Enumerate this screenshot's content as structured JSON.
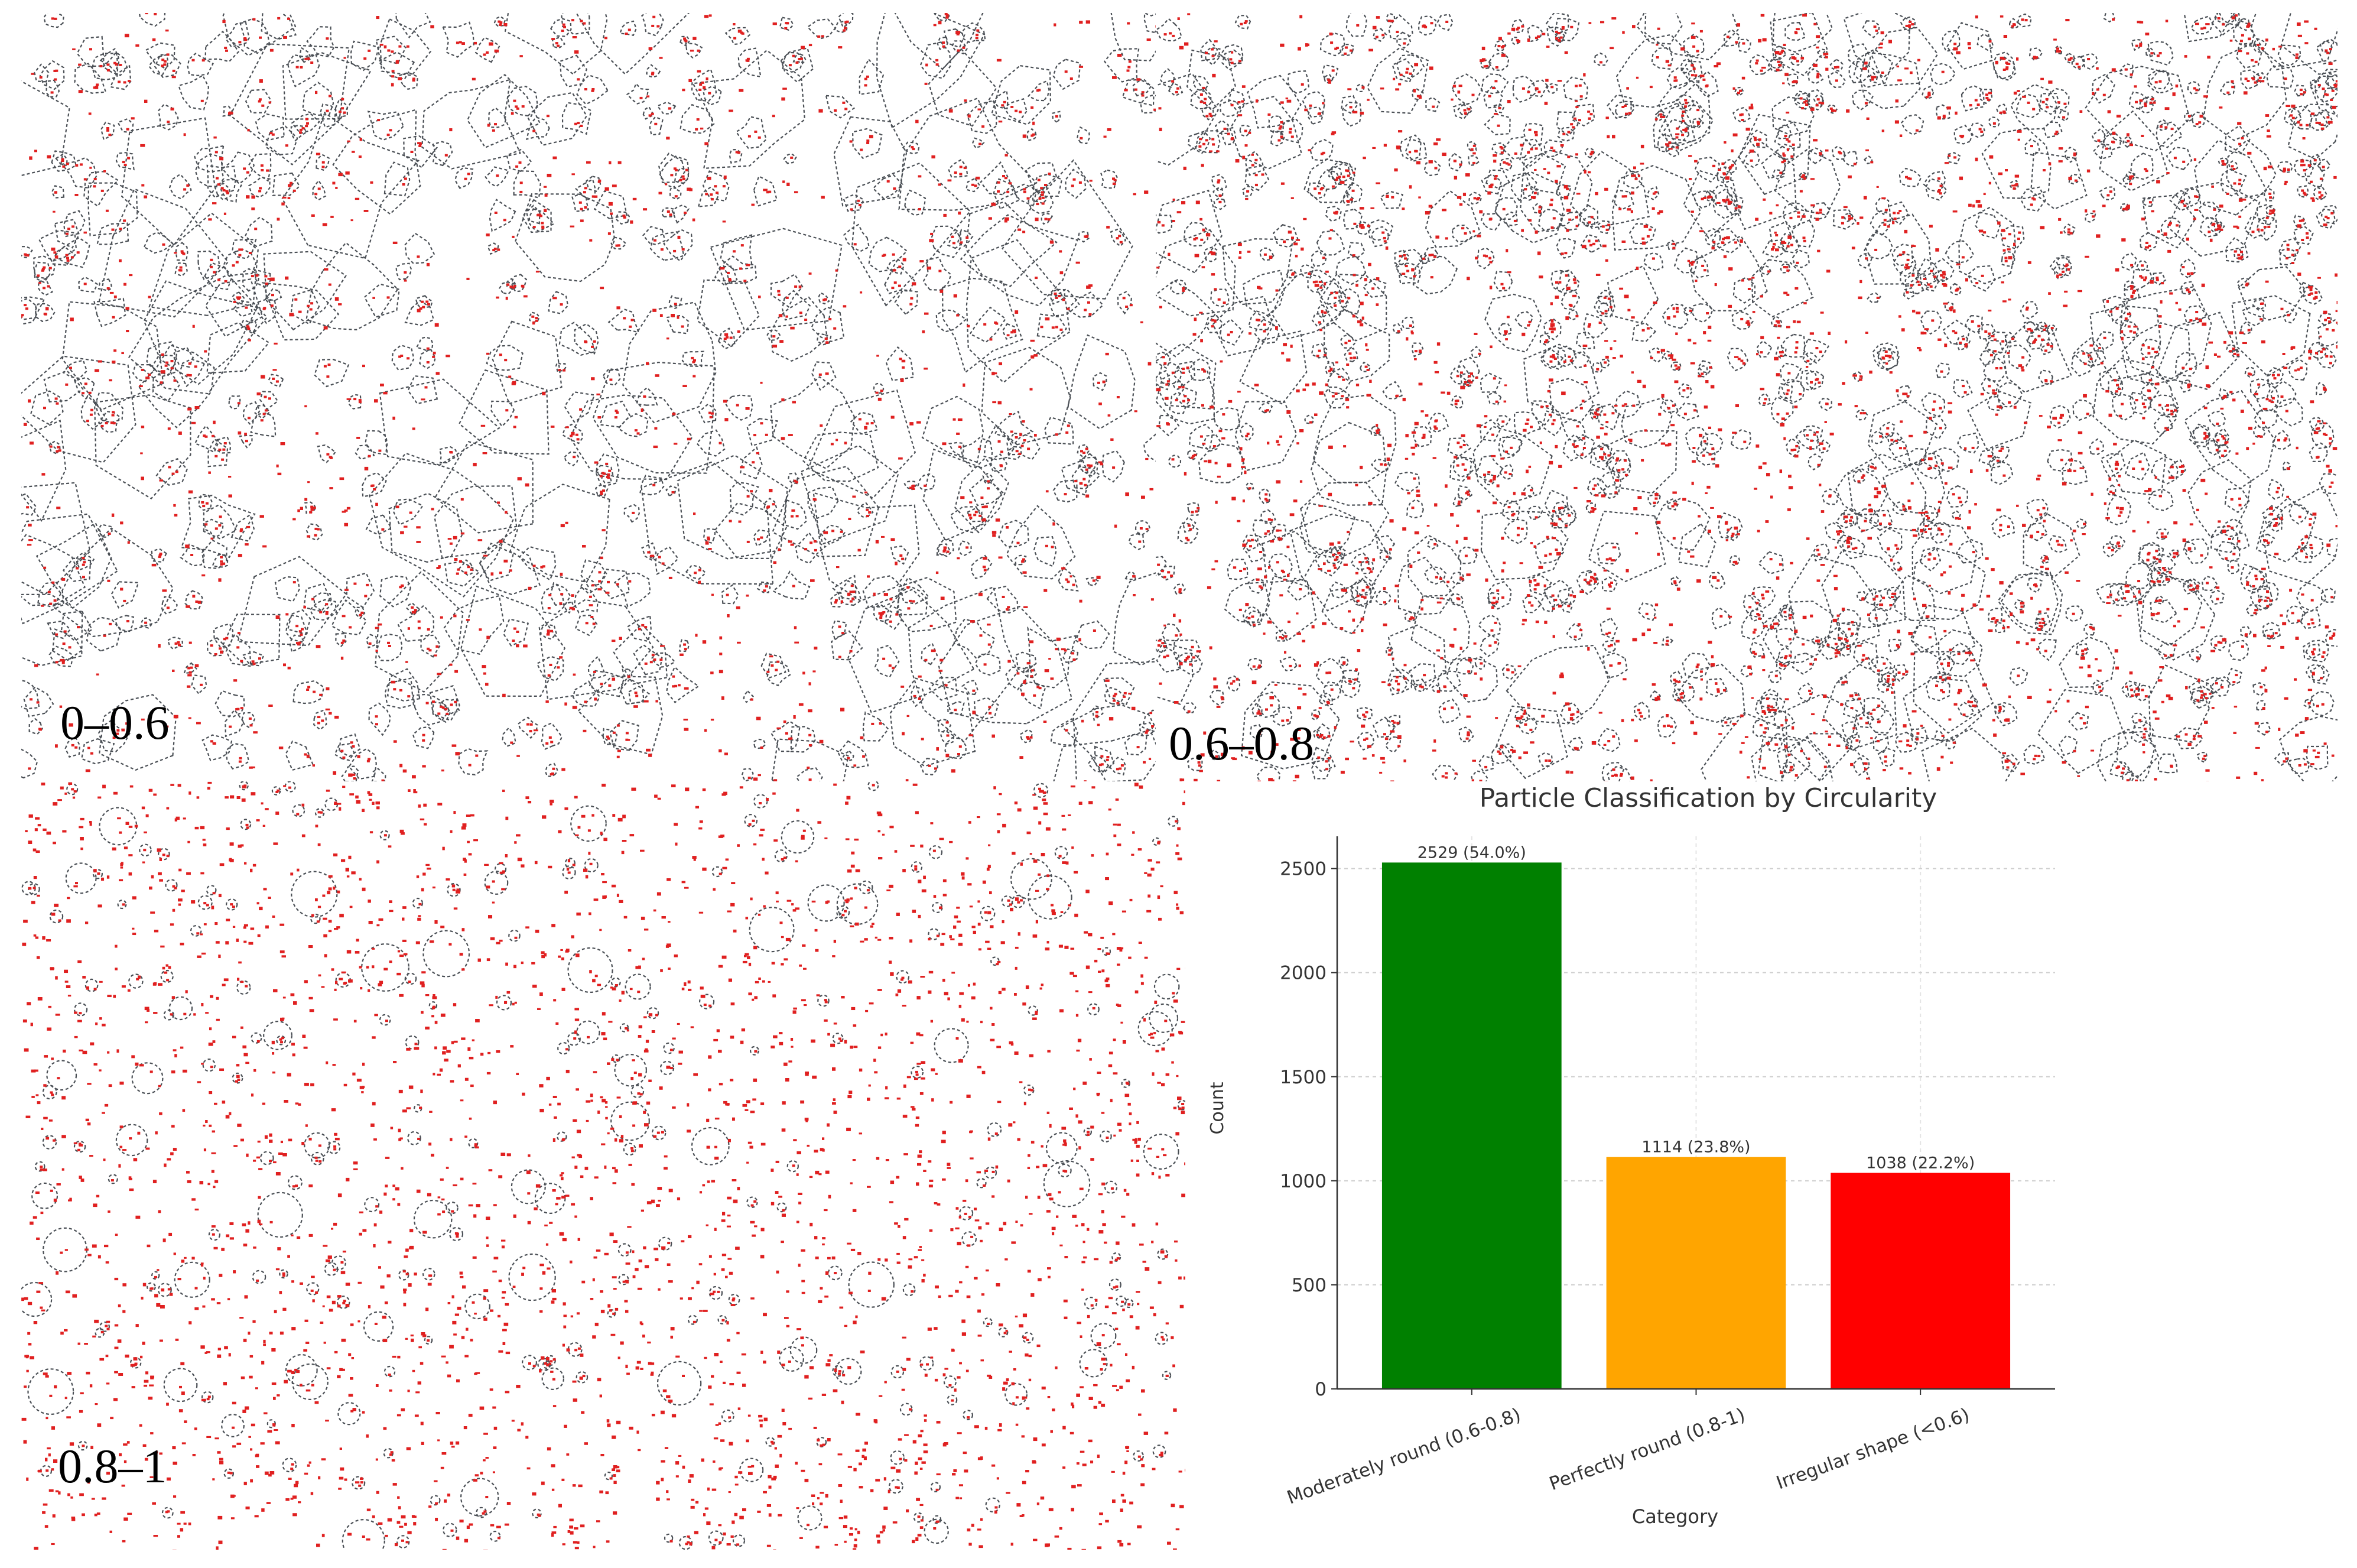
{
  "panels": [
    {
      "id": "irregular",
      "label": "0–0.6",
      "outline_color": "#4a4f55",
      "center_color": "#e02020"
    },
    {
      "id": "moderate",
      "label": "0.6–0.8",
      "outline_color": "#4a4f55",
      "center_color": "#e02020"
    },
    {
      "id": "perfect",
      "label": "0.8–1",
      "outline_color": "#4a4f55",
      "center_color": "#e02020"
    }
  ],
  "chart_data": {
    "type": "bar",
    "title": "Particle Classification by Circularity",
    "xlabel": "Category",
    "ylabel": "Count",
    "categories": [
      "Moderately round (0.6-0.8)",
      "Perfectly round (0.8-1)",
      "Irregular shape (<0.6)"
    ],
    "values": [
      2529,
      1114,
      1038
    ],
    "data_labels": [
      "2529 (54.0%)",
      "1114 (23.8%)",
      "1038 (22.2%)"
    ],
    "colors": [
      "#008000",
      "#ffa500",
      "#ff0000"
    ],
    "yticks": [
      0,
      500,
      1000,
      1500,
      2000,
      2500
    ],
    "ylim": [
      0,
      2655
    ],
    "grid": true
  }
}
